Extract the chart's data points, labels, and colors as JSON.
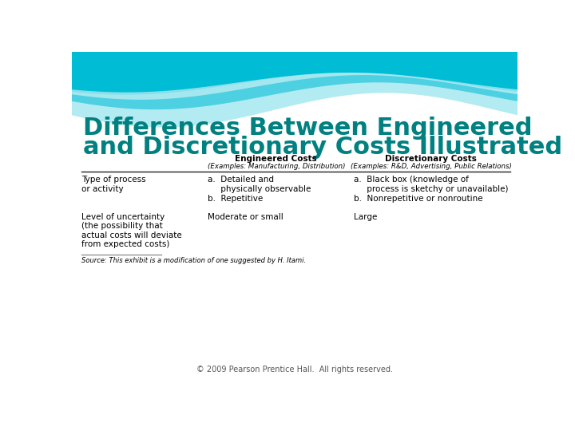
{
  "title_line1": "Differences Between Engineered",
  "title_line2": "and Discretionary Costs Illustrated",
  "title_color": "#008080",
  "bg_color": "#ffffff",
  "col_headers": [
    "Engineered Costs",
    "Discretionary Costs"
  ],
  "col_subheaders": [
    "(Examples: Manufacturing, Distribution)",
    "(Examples: R&D, Advertising, Public Relations)"
  ],
  "row1_label": "Type of process\nor activity",
  "row1_eng": "a.  Detailed and\n     physically observable\nb.  Repetitive",
  "row1_disc": "a.  Black box (knowledge of\n     process is sketchy or unavailable)\nb.  Nonrepetitive or nonroutine",
  "row2_label": "Level of uncertainty\n(the possibility that\nactual costs will deviate\nfrom expected costs)",
  "row2_eng": "Moderate or small",
  "row2_disc": "Large",
  "source_text": "Source: This exhibit is a modification of one suggested by H. Itami.",
  "footer": "© 2009 Pearson Prentice Hall.  All rights reserved.",
  "text_color": "#000000",
  "footer_color": "#555555"
}
